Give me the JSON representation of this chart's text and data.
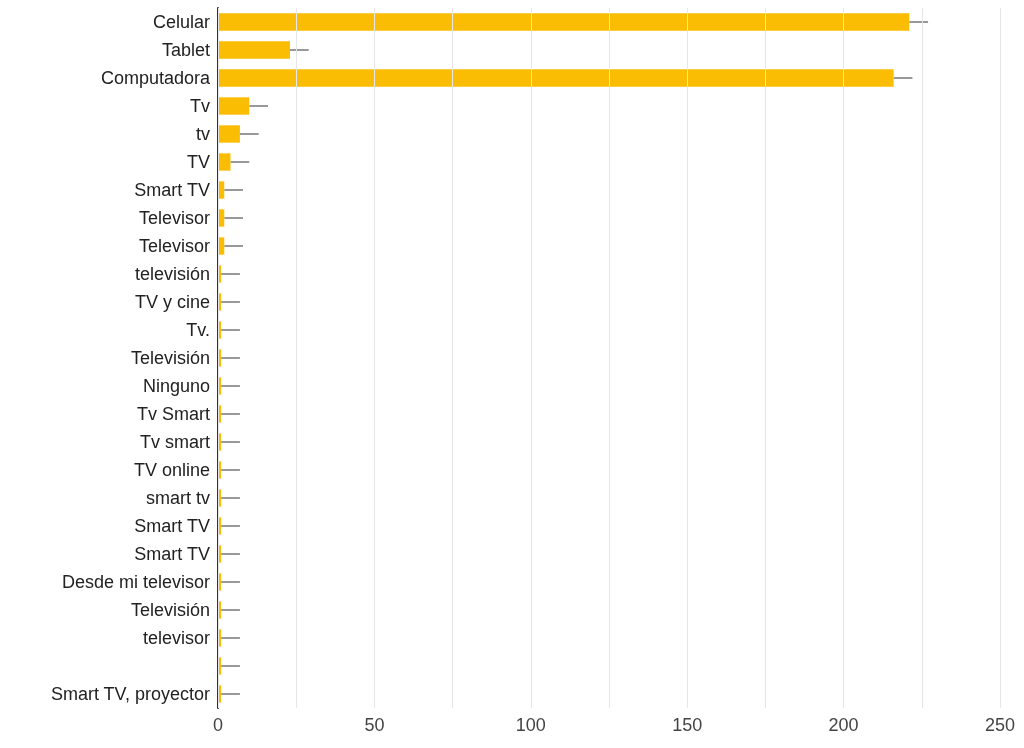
{
  "chart_data": {
    "type": "bar",
    "orientation": "horizontal",
    "categories": [
      "Celular",
      "Tablet",
      "Computadora",
      "Tv",
      "tv",
      "TV",
      "Smart TV",
      "Televisor",
      "Televisor",
      "televisión",
      "TV y cine",
      "Tv.",
      "Televisión",
      "Ninguno",
      "Tv Smart",
      "Tv smart",
      "TV online",
      "smart tv",
      "Smart TV",
      "Smart TV",
      "Desde mi televisor",
      "Televisión",
      "televisor",
      null,
      "Smart TV, proyector"
    ],
    "series": [
      {
        "color": "#fbbc04",
        "values": [
          221,
          23,
          216,
          10,
          7,
          4,
          2,
          2,
          2,
          1,
          1,
          1,
          1,
          1,
          1,
          1,
          1,
          1,
          1,
          1,
          1,
          1,
          1,
          1,
          1
        ],
        "errors": [
          [
            221,
            227
          ],
          [
            23,
            29
          ],
          [
            216,
            222
          ],
          [
            10,
            16
          ],
          [
            7,
            13
          ],
          [
            4,
            10
          ],
          [
            2,
            8
          ],
          [
            2,
            8
          ],
          [
            2,
            8
          ],
          [
            1,
            7
          ],
          [
            1,
            7
          ],
          [
            1,
            7
          ],
          [
            1,
            7
          ],
          [
            1,
            7
          ],
          [
            1,
            7
          ],
          [
            1,
            7
          ],
          [
            1,
            7
          ],
          [
            1,
            7
          ],
          [
            1,
            7
          ],
          [
            1,
            7
          ],
          [
            1,
            7
          ],
          [
            1,
            7
          ],
          [
            1,
            7
          ],
          [
            1,
            7
          ],
          [
            1,
            7
          ]
        ]
      }
    ],
    "xlim": [
      0,
      250
    ],
    "xticks": [
      0,
      {
        "value": 25,
        "label": null
      },
      50,
      {
        "value": 75,
        "label": null
      },
      100,
      {
        "value": 125,
        "label": null
      },
      150,
      {
        "value": 175,
        "label": null
      },
      200,
      {
        "value": 225,
        "label": null
      },
      250
    ],
    "grid": "x"
  }
}
